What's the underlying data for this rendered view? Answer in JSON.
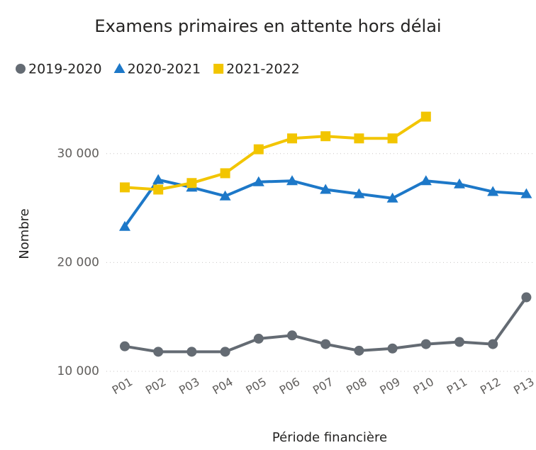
{
  "chart_data": {
    "type": "line",
    "title": "Examens primaires en attente hors délai",
    "x_label": "Période financière",
    "y_label": "Nombre",
    "categories": [
      "P01",
      "P02",
      "P03",
      "P04",
      "P05",
      "P06",
      "P07",
      "P08",
      "P09",
      "P10",
      "P11",
      "P12",
      "P13"
    ],
    "series": [
      {
        "name": "2019-2020",
        "color": "#646b73",
        "marker": "circle",
        "values": [
          12300,
          11800,
          11800,
          11800,
          13000,
          13300,
          12500,
          11900,
          12100,
          12500,
          12700,
          12500,
          16800
        ]
      },
      {
        "name": "2020-2021",
        "color": "#1d78c8",
        "marker": "triangle",
        "values": [
          23300,
          27600,
          26900,
          26100,
          27400,
          27500,
          26700,
          26300,
          25900,
          27500,
          27200,
          26500,
          26300
        ]
      },
      {
        "name": "2021-2022",
        "color": "#f2c500",
        "marker": "square",
        "values": [
          26900,
          26700,
          27300,
          28200,
          30400,
          31400,
          31600,
          31400,
          31400,
          33400,
          null,
          null,
          null
        ]
      }
    ],
    "ylim": [
      10000,
      35000
    ],
    "yticks": [
      {
        "value": 10000,
        "label": "10 000"
      },
      {
        "value": 20000,
        "label": "20 000"
      },
      {
        "value": 30000,
        "label": "30 000"
      }
    ],
    "grid": true
  }
}
